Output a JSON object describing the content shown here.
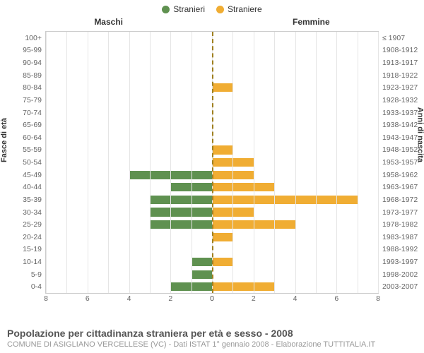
{
  "legend": {
    "male": {
      "label": "Stranieri",
      "color": "#5f9150"
    },
    "female": {
      "label": "Straniere",
      "color": "#f0ad33"
    }
  },
  "columns": {
    "left": "Maschi",
    "right": "Femmine"
  },
  "axes": {
    "left_label": "Fasce di età",
    "right_label": "Anni di nascita",
    "xmax": 8,
    "xticks_left": [
      8,
      6,
      4,
      2,
      0
    ],
    "xticks_right": [
      0,
      2,
      4,
      6,
      8
    ]
  },
  "style": {
    "background": "#ffffff",
    "grid_color": "#e5e5e5",
    "center_line_color": "#a08020",
    "text_color": "#666666",
    "bar_height_pct": 70
  },
  "rows": [
    {
      "age": "100+",
      "birth": "≤ 1907",
      "m": 0,
      "f": 0
    },
    {
      "age": "95-99",
      "birth": "1908-1912",
      "m": 0,
      "f": 0
    },
    {
      "age": "90-94",
      "birth": "1913-1917",
      "m": 0,
      "f": 0
    },
    {
      "age": "85-89",
      "birth": "1918-1922",
      "m": 0,
      "f": 0
    },
    {
      "age": "80-84",
      "birth": "1923-1927",
      "m": 0,
      "f": 1
    },
    {
      "age": "75-79",
      "birth": "1928-1932",
      "m": 0,
      "f": 0
    },
    {
      "age": "70-74",
      "birth": "1933-1937",
      "m": 0,
      "f": 0
    },
    {
      "age": "65-69",
      "birth": "1938-1942",
      "m": 0,
      "f": 0
    },
    {
      "age": "60-64",
      "birth": "1943-1947",
      "m": 0,
      "f": 0
    },
    {
      "age": "55-59",
      "birth": "1948-1952",
      "m": 0,
      "f": 1
    },
    {
      "age": "50-54",
      "birth": "1953-1957",
      "m": 0,
      "f": 2
    },
    {
      "age": "45-49",
      "birth": "1958-1962",
      "m": 4,
      "f": 2
    },
    {
      "age": "40-44",
      "birth": "1963-1967",
      "m": 2,
      "f": 3
    },
    {
      "age": "35-39",
      "birth": "1968-1972",
      "m": 3,
      "f": 7
    },
    {
      "age": "30-34",
      "birth": "1973-1977",
      "m": 3,
      "f": 2
    },
    {
      "age": "25-29",
      "birth": "1978-1982",
      "m": 3,
      "f": 4
    },
    {
      "age": "20-24",
      "birth": "1983-1987",
      "m": 0,
      "f": 1
    },
    {
      "age": "15-19",
      "birth": "1988-1992",
      "m": 0,
      "f": 0
    },
    {
      "age": "10-14",
      "birth": "1993-1997",
      "m": 1,
      "f": 1
    },
    {
      "age": "5-9",
      "birth": "1998-2002",
      "m": 1,
      "f": 0
    },
    {
      "age": "0-4",
      "birth": "2003-2007",
      "m": 2,
      "f": 3
    }
  ],
  "title": "Popolazione per cittadinanza straniera per età e sesso - 2008",
  "subtitle": "COMUNE DI ASIGLIANO VERCELLESE (VC) - Dati ISTAT 1° gennaio 2008 - Elaborazione TUTTITALIA.IT"
}
